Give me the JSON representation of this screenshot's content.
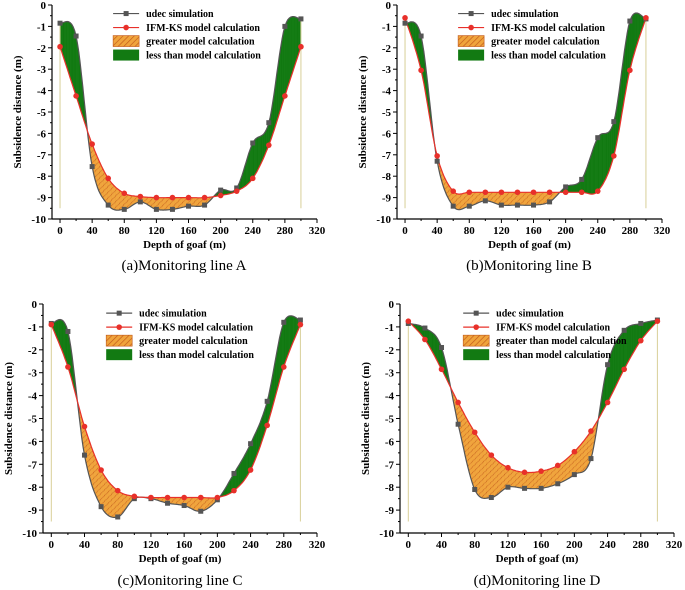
{
  "colors": {
    "udec": "#555555",
    "ifm": "#e8302a",
    "greater_fill": "#f0a43c",
    "greater_hatch": "#c0571b",
    "less_fill": "#127a12",
    "axis": "#000000",
    "guide": "#d8cf98"
  },
  "chart_data": [
    {
      "type": "line",
      "title": "(a)Monitoring line A",
      "xlabel": "Depth of goaf (m)",
      "ylabel": "Subsidence distance (m)",
      "xlim": [
        -10,
        320
      ],
      "ylim": [
        -10,
        0
      ],
      "xticks": [
        0,
        40,
        80,
        120,
        160,
        200,
        240,
        280,
        320
      ],
      "yticks": [
        0,
        -1,
        -2,
        -3,
        -4,
        -5,
        -6,
        -7,
        -8,
        -9,
        -10
      ],
      "x": [
        0,
        20,
        40,
        60,
        80,
        100,
        120,
        140,
        160,
        180,
        200,
        220,
        240,
        260,
        280,
        300
      ],
      "series": [
        {
          "name": "udec simulation",
          "values": [
            -0.85,
            -1.45,
            -7.55,
            -9.35,
            -9.55,
            -9.2,
            -9.55,
            -9.55,
            -9.4,
            -9.35,
            -8.65,
            -8.55,
            -6.45,
            -5.5,
            -1.0,
            -0.65
          ]
        },
        {
          "name": "IFM-KS model calculation",
          "values": [
            -1.95,
            -4.25,
            -6.5,
            -8.1,
            -8.8,
            -8.95,
            -9.0,
            -9.0,
            -9.0,
            -9.0,
            -8.9,
            -8.7,
            -8.1,
            -6.55,
            -4.25,
            -1.95
          ]
        }
      ],
      "legend": [
        "udec simulation",
        "IFM-KS model calculation",
        "greater model calculation",
        "less than model calculation"
      ]
    },
    {
      "type": "line",
      "title": "(b)Monitoring line B",
      "xlabel": "Depth of goaf (m)",
      "ylabel": "Subsidence distance (m)",
      "xlim": [
        -10,
        320
      ],
      "ylim": [
        -10,
        0
      ],
      "xticks": [
        0,
        40,
        80,
        120,
        160,
        200,
        240,
        280,
        320
      ],
      "yticks": [
        0,
        -1,
        -2,
        -3,
        -4,
        -5,
        -6,
        -7,
        -8,
        -9,
        -10
      ],
      "x": [
        0,
        20,
        40,
        60,
        80,
        100,
        120,
        140,
        160,
        180,
        200,
        220,
        240,
        260,
        280,
        300
      ],
      "series": [
        {
          "name": "udec simulation",
          "values": [
            -0.85,
            -1.45,
            -7.3,
            -9.4,
            -9.4,
            -9.15,
            -9.35,
            -9.35,
            -9.35,
            -9.2,
            -8.5,
            -8.15,
            -6.2,
            -5.45,
            -0.75,
            -0.65
          ]
        },
        {
          "name": "IFM-KS model calculation",
          "values": [
            -0.6,
            -3.05,
            -7.05,
            -8.7,
            -8.75,
            -8.75,
            -8.75,
            -8.75,
            -8.75,
            -8.75,
            -8.75,
            -8.75,
            -8.7,
            -7.05,
            -3.05,
            -0.6
          ]
        }
      ],
      "legend": [
        "udec simulation",
        "IFM-KS model calculation",
        "greater model calculation",
        "less than model calculation"
      ]
    },
    {
      "type": "line",
      "title": "(c)Monitoring line C",
      "xlabel": "Depth of goaf (m)",
      "ylabel": "Subsidence distance (m)",
      "xlim": [
        -10,
        320
      ],
      "ylim": [
        -10,
        0
      ],
      "xticks": [
        0,
        40,
        80,
        120,
        160,
        200,
        240,
        280,
        320
      ],
      "yticks": [
        0,
        -1,
        -2,
        -3,
        -4,
        -5,
        -6,
        -7,
        -8,
        -9,
        -10
      ],
      "x": [
        0,
        20,
        40,
        60,
        80,
        100,
        120,
        140,
        160,
        180,
        200,
        220,
        240,
        260,
        280,
        300
      ],
      "series": [
        {
          "name": "udec simulation",
          "values": [
            -0.85,
            -1.2,
            -6.6,
            -8.85,
            -9.3,
            -8.5,
            -8.5,
            -8.7,
            -8.8,
            -9.05,
            -8.55,
            -7.4,
            -6.1,
            -4.25,
            -0.8,
            -0.7
          ]
        },
        {
          "name": "IFM-KS model calculation",
          "values": [
            -0.9,
            -2.75,
            -5.35,
            -7.25,
            -8.15,
            -8.4,
            -8.45,
            -8.45,
            -8.45,
            -8.45,
            -8.45,
            -8.15,
            -7.25,
            -5.3,
            -2.75,
            -0.9
          ]
        }
      ],
      "legend": [
        "udec simulation",
        "IFM-KS model calculation",
        "greater model calculation",
        "less than model calculation"
      ]
    },
    {
      "type": "line",
      "title": "(d)Monitoring line D",
      "xlabel": "Depth of goaf (m)",
      "ylabel": "Subsidence distance (m)",
      "xlim": [
        -10,
        320
      ],
      "ylim": [
        -10,
        0
      ],
      "xticks": [
        0,
        40,
        80,
        120,
        160,
        200,
        240,
        280,
        320
      ],
      "yticks": [
        0,
        -1,
        -2,
        -3,
        -4,
        -5,
        -6,
        -7,
        -8,
        -9,
        -10
      ],
      "x": [
        0,
        20,
        40,
        60,
        80,
        100,
        120,
        140,
        160,
        180,
        200,
        220,
        240,
        260,
        280,
        300
      ],
      "series": [
        {
          "name": "udec simulation",
          "values": [
            -0.85,
            -1.05,
            -1.9,
            -5.25,
            -8.1,
            -8.45,
            -8.0,
            -8.05,
            -8.05,
            -7.85,
            -7.45,
            -6.75,
            -2.65,
            -1.15,
            -0.85,
            -0.7
          ]
        },
        {
          "name": "IFM-KS model calculation",
          "values": [
            -0.75,
            -1.55,
            -2.85,
            -4.3,
            -5.6,
            -6.6,
            -7.15,
            -7.35,
            -7.3,
            -7.05,
            -6.45,
            -5.55,
            -4.3,
            -2.85,
            -1.6,
            -0.75
          ]
        }
      ],
      "legend": [
        "udec simulation",
        "IFM-KS model calculation",
        "greater than model calculation",
        "less than model calculation"
      ]
    }
  ]
}
